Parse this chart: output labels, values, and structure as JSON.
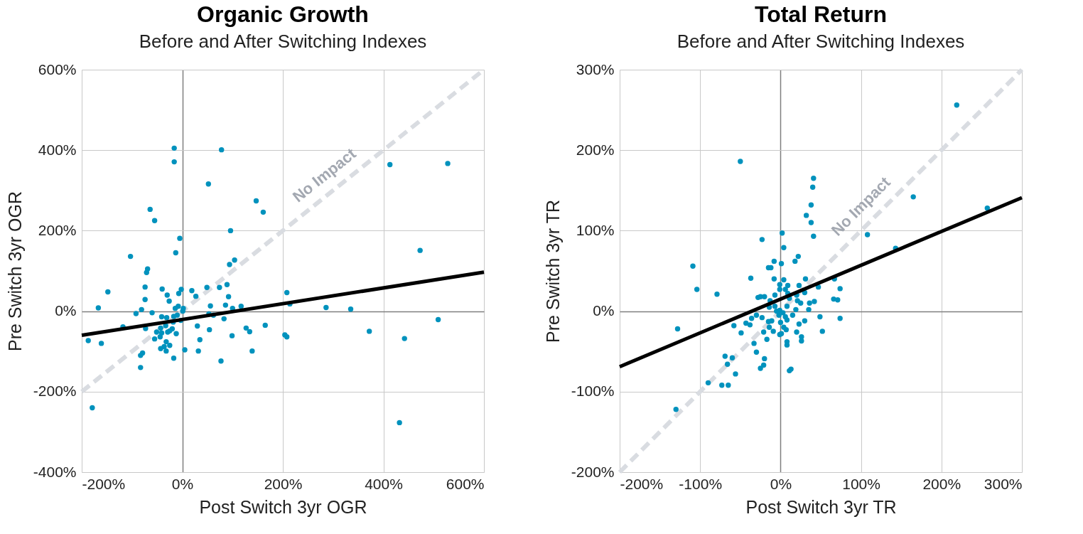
{
  "chart_data": [
    {
      "type": "scatter",
      "title": "Organic Growth",
      "subtitle": "Before and After Switching Indexes",
      "xlabel": "Post Switch 3yr  OGR",
      "ylabel": "Pre Switch 3yr OGR",
      "grid": true,
      "marker": "circle",
      "xlim": [
        -200,
        600
      ],
      "ylim": [
        -400,
        600
      ],
      "xticks": [
        {
          "value": -200,
          "label": "-200%"
        },
        {
          "value": 0,
          "label": "0%"
        },
        {
          "value": 200,
          "label": "200%"
        },
        {
          "value": 400,
          "label": "400%"
        },
        {
          "value": 600,
          "label": "600%"
        }
      ],
      "yticks": [
        {
          "value": -400,
          "label": "-400%"
        },
        {
          "value": -200,
          "label": "-200%"
        },
        {
          "value": 0,
          "label": "0%"
        },
        {
          "value": 200,
          "label": "200%"
        },
        {
          "value": 400,
          "label": "400%"
        },
        {
          "value": 600,
          "label": "600%"
        }
      ],
      "series": [
        {
          "name": "No Impact",
          "type": "line",
          "marker": "none",
          "color": "#d9dce1",
          "line_style": "dashed",
          "x": [
            -200,
            600
          ],
          "values": [
            -200,
            600
          ]
        },
        {
          "color": "#0092bd",
          "x": [
            -16,
            -16,
            78,
            52,
            413,
            528,
            147,
            161,
            -64,
            -55,
            96,
            -5,
            -13,
            473,
            -103,
            104,
            94,
            -69,
            -71,
            -74,
            89,
            -40,
            -2,
            49,
            74,
            19,
            -148,
            208,
            -30,
            27,
            92,
            -74,
            -26,
            -7,
            86,
            56,
            117,
            214,
            286,
            335,
            -167,
            -81,
            -92,
            -60,
            -8,
            2,
            -14,
            1,
            100,
            53,
            62,
            -41,
            -31,
            -10,
            -17,
            -3,
            -18,
            83,
            509,
            -118,
            -73,
            -43,
            -33,
            30,
            127,
            165,
            54,
            134,
            372,
            -20,
            -25,
            -29,
            -51,
            -41,
            -12,
            99,
            204,
            208,
            -187,
            -161,
            -55,
            -44,
            35,
            442,
            -32,
            -25,
            -43,
            -36,
            -32,
            5,
            32,
            139,
            -79,
            -83,
            -17,
            77,
            -83,
            -179,
            432
          ],
          "values": [
            405,
            371,
            401,
            316,
            364,
            367,
            274,
            246,
            253,
            225,
            200,
            181,
            145,
            151,
            136,
            127,
            116,
            105,
            96,
            60,
            66,
            55,
            54,
            59,
            59,
            51,
            48,
            46,
            40,
            37,
            36,
            29,
            25,
            44,
            15,
            13,
            12,
            18,
            9,
            5,
            8,
            4,
            -6,
            -4,
            12,
            7,
            7,
            0,
            7,
            -7,
            -10,
            -14,
            -16,
            -10,
            -13,
            -23,
            -27,
            -19,
            -21,
            -39,
            -43,
            -42,
            -36,
            -37,
            -42,
            -35,
            -46,
            -51,
            -50,
            -44,
            -49,
            -52,
            -52,
            -54,
            -56,
            -61,
            -59,
            -64,
            -73,
            -80,
            -69,
            -64,
            -71,
            -68,
            -76,
            -85,
            -93,
            -88,
            -99,
            -96,
            -99,
            -99,
            -104,
            -110,
            -117,
            -124,
            -140,
            -240,
            -277
          ]
        },
        {
          "type": "line",
          "marker": "none",
          "color": "#000000",
          "line_style": "solid",
          "x": [
            -200,
            600
          ],
          "values": [
            -60,
            97
          ]
        }
      ]
    },
    {
      "type": "scatter",
      "title": "Total Return",
      "subtitle": "Before and After Switching Indexes",
      "xlabel": "Post Switch 3yr  TR",
      "ylabel": "Pre Switch 3yr TR",
      "grid": true,
      "marker": "circle",
      "xlim": [
        -200,
        300
      ],
      "ylim": [
        -200,
        300
      ],
      "xticks": [
        {
          "value": -200,
          "label": "-200%"
        },
        {
          "value": -100,
          "label": "-100%"
        },
        {
          "value": 0,
          "label": "0%"
        },
        {
          "value": 100,
          "label": "100%"
        },
        {
          "value": 200,
          "label": "200%"
        },
        {
          "value": 300,
          "label": "300%"
        }
      ],
      "yticks": [
        {
          "value": -200,
          "label": "-200%"
        },
        {
          "value": -100,
          "label": "-100%"
        },
        {
          "value": 0,
          "label": "0%"
        },
        {
          "value": 100,
          "label": "100%"
        },
        {
          "value": 200,
          "label": "200%"
        },
        {
          "value": 300,
          "label": "300%"
        }
      ],
      "series": [
        {
          "name": "No Impact",
          "type": "line",
          "marker": "none",
          "color": "#d9dce1",
          "line_style": "dashed",
          "x": [
            -200,
            300
          ],
          "values": [
            -200,
            300
          ]
        },
        {
          "color": "#0092bd",
          "x": [
            219,
            -50,
            41,
            40,
            38,
            165,
            32,
            38,
            257,
            2,
            41,
            108,
            -23,
            143,
            4,
            22,
            18,
            -8,
            1,
            -15,
            -12,
            -109,
            -37,
            -8,
            4,
            31,
            67,
            -104,
            -79,
            74,
            47,
            23,
            9,
            -1,
            -1,
            6,
            30,
            -28,
            -25,
            -20,
            -7,
            20,
            9,
            25,
            36,
            42,
            66,
            71,
            -13,
            21,
            11,
            -14,
            -7,
            8,
            -1,
            -5,
            3,
            19,
            35,
            15,
            6,
            -2,
            -30,
            -36,
            -23,
            -11,
            -15,
            8,
            0,
            49,
            74,
            30,
            23,
            -58,
            -43,
            -38,
            -14,
            4,
            7,
            -9,
            -21,
            -49,
            20,
            52,
            -17,
            -1,
            1,
            26,
            26,
            8,
            8,
            -128,
            -33,
            -30,
            -69,
            -60,
            -20,
            -66,
            -21,
            -25,
            -56,
            13,
            11,
            -90,
            -73,
            -65,
            -130
          ],
          "values": [
            256,
            186,
            165,
            154,
            132,
            142,
            119,
            110,
            128,
            97,
            93,
            95,
            89,
            78,
            79,
            68,
            62,
            62,
            59,
            54,
            54,
            56,
            41,
            40,
            39,
            40,
            40,
            27,
            21,
            28,
            30,
            32,
            32,
            33,
            27,
            27,
            23,
            17,
            18,
            18,
            20,
            20,
            22,
            10,
            10,
            12,
            15,
            14,
            13,
            13,
            16,
            5,
            6,
            6,
            1,
            0,
            -2,
            2,
            2,
            -5,
            -7,
            -5,
            -5,
            -9,
            -8,
            -12,
            -13,
            -11,
            -14,
            -7,
            -9,
            -12,
            -16,
            -18,
            -15,
            -17,
            -20,
            -20,
            -23,
            -25,
            -26,
            -27,
            -26,
            -25,
            -35,
            -29,
            -28,
            -32,
            -37,
            -38,
            -42,
            -22,
            -40,
            -51,
            -56,
            -58,
            -59,
            -66,
            -67,
            -71,
            -78,
            -72,
            -74,
            -89,
            -92,
            -92,
            -122
          ]
        },
        {
          "type": "line",
          "marker": "none",
          "color": "#000000",
          "line_style": "solid",
          "x": [
            -200,
            300
          ],
          "values": [
            -69,
            141
          ]
        }
      ]
    }
  ]
}
